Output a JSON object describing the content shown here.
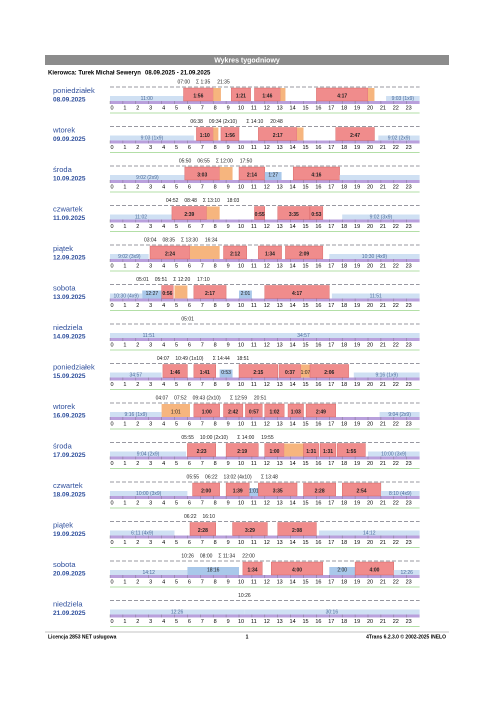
{
  "header": {
    "title": "Wykres tygodniowy",
    "driver": "Kierowca: Turek Michał Seweryn",
    "period": "08.09.2025 - 21.09.2025"
  },
  "hours": [
    0,
    1,
    2,
    3,
    4,
    5,
    6,
    7,
    8,
    9,
    10,
    11,
    12,
    13,
    14,
    15,
    16,
    17,
    18,
    19,
    20,
    21,
    22,
    23
  ],
  "days": [
    {
      "day": "poniedziałek",
      "date": "08.09.2025",
      "top": [
        "07:00",
        "Σ 1:35",
        "21:35"
      ],
      "seg": [
        {
          "s": 0,
          "e": 5.7,
          "k": "r",
          "label": "11:00"
        },
        {
          "s": 5.7,
          "e": 8,
          "k": "d",
          "label": "1:56"
        },
        {
          "s": 8,
          "e": 8.6,
          "k": "w"
        },
        {
          "s": 9.4,
          "e": 10.9,
          "k": "d",
          "label": "1:21"
        },
        {
          "s": 11.2,
          "e": 13.2,
          "k": "d",
          "label": "1:46"
        },
        {
          "s": 13.2,
          "e": 13.6,
          "k": "w"
        },
        {
          "s": 16,
          "e": 20,
          "k": "d",
          "label": "4:17"
        },
        {
          "s": 20,
          "e": 20.5,
          "k": "w"
        },
        {
          "s": 21.4,
          "e": 24,
          "k": "r",
          "label": "9:03 (1x9)"
        }
      ]
    },
    {
      "day": "wtorek",
      "date": "09.09.2025",
      "top": [
        "06:38",
        "09:34 (2x10)",
        "Σ 14:10",
        "20:48"
      ],
      "seg": [
        {
          "s": 0,
          "e": 6.5,
          "k": "r",
          "label": "9:03 (1x9)"
        },
        {
          "s": 6.7,
          "e": 8,
          "k": "d",
          "label": "1:10"
        },
        {
          "s": 8,
          "e": 8.4,
          "k": "w"
        },
        {
          "s": 8.6,
          "e": 10,
          "k": "d",
          "label": "1:56"
        },
        {
          "s": 11.5,
          "e": 14.5,
          "k": "d",
          "label": "2:17"
        },
        {
          "s": 14.5,
          "e": 15,
          "k": "w"
        },
        {
          "s": 17.5,
          "e": 20.5,
          "k": "d",
          "label": "2:47"
        },
        {
          "s": 20.8,
          "e": 24,
          "k": "r",
          "label": "9:02 (2x9)"
        }
      ]
    },
    {
      "day": "środa",
      "date": "10.09.2025",
      "top": [
        "05:50",
        "06:55",
        "Σ 12:00",
        "17:50"
      ],
      "seg": [
        {
          "s": 0,
          "e": 5.8,
          "k": "r",
          "label": "9:02 (2x9)"
        },
        {
          "s": 5.8,
          "e": 8.5,
          "k": "d",
          "label": "3:03"
        },
        {
          "s": 8.5,
          "e": 9.5,
          "k": "w"
        },
        {
          "s": 10,
          "e": 12,
          "k": "d",
          "label": "2:14"
        },
        {
          "s": 12,
          "e": 13.3,
          "k": "a",
          "label": "1:27"
        },
        {
          "s": 14.2,
          "e": 17.8,
          "k": "d",
          "label": "4:16"
        },
        {
          "s": 17.8,
          "e": 24,
          "k": "r"
        }
      ]
    },
    {
      "day": "czwartek",
      "date": "11.09.2025",
      "top": [
        "04:52",
        "08:48",
        "Σ 13:10",
        "18:03"
      ],
      "seg": [
        {
          "s": 0,
          "e": 4.8,
          "k": "r",
          "label": "11:02"
        },
        {
          "s": 4.8,
          "e": 7.5,
          "k": "d",
          "label": "2:39"
        },
        {
          "s": 7.5,
          "e": 8.5,
          "k": "w"
        },
        {
          "s": 11.2,
          "e": 12,
          "k": "d",
          "label": "0:55"
        },
        {
          "s": 13,
          "e": 15.5,
          "k": "d",
          "label": "3:35"
        },
        {
          "s": 15.5,
          "e": 16.5,
          "k": "d",
          "label": "0:53"
        },
        {
          "s": 18,
          "e": 24,
          "k": "r",
          "label": "9:02 (3x9)"
        }
      ]
    },
    {
      "day": "piątek",
      "date": "12.09.2025",
      "top": [
        "03:04",
        "08:35",
        "Σ 13:30",
        "16:34"
      ],
      "seg": [
        {
          "s": 0,
          "e": 3,
          "k": "r",
          "label": "9:02 (3x9)"
        },
        {
          "s": 3.1,
          "e": 6.2,
          "k": "d",
          "label": "2:24"
        },
        {
          "s": 6.2,
          "e": 8.5,
          "k": "w"
        },
        {
          "s": 8.8,
          "e": 10.6,
          "k": "d",
          "label": "2:12"
        },
        {
          "s": 11.5,
          "e": 13.3,
          "k": "d",
          "label": "1:34"
        },
        {
          "s": 13.6,
          "e": 16.5,
          "k": "d",
          "label": "2:09"
        },
        {
          "s": 17,
          "e": 24,
          "k": "r",
          "label": "10:30 (4x9)"
        }
      ]
    },
    {
      "day": "sobota",
      "date": "13.09.2025",
      "top": [
        "05:01",
        "05:51",
        "Σ 12:20",
        "17:10"
      ],
      "seg": [
        {
          "s": 0,
          "e": 2.5,
          "k": "r",
          "label": "10:30 (4x9)"
        },
        {
          "s": 2.5,
          "e": 4,
          "k": "a",
          "label": "12:27"
        },
        {
          "s": 4,
          "e": 4.9,
          "k": "d",
          "label": "0:56"
        },
        {
          "s": 5,
          "e": 6,
          "k": "w"
        },
        {
          "s": 6.5,
          "e": 9,
          "k": "d",
          "label": "2:17"
        },
        {
          "s": 10,
          "e": 11,
          "k": "a",
          "label": "2:01"
        },
        {
          "s": 12,
          "e": 17,
          "k": "d",
          "label": "4:17"
        },
        {
          "s": 17.2,
          "e": 24,
          "k": "r",
          "label": "11:51"
        }
      ]
    },
    {
      "day": "niedziela",
      "date": "14.09.2025",
      "top": [
        "05:01"
      ],
      "seg": [
        {
          "s": 0,
          "e": 6,
          "k": "r",
          "label": "11:51"
        },
        {
          "s": 6,
          "e": 24,
          "k": "r",
          "label": "34:57"
        }
      ]
    },
    {
      "day": "poniedziałek",
      "date": "15.09.2025",
      "top": [
        "04:07",
        "10:49 (1x10)",
        "Σ 14:44",
        "18:51"
      ],
      "seg": [
        {
          "s": 0,
          "e": 4,
          "k": "r",
          "label": "34:57"
        },
        {
          "s": 4.1,
          "e": 6,
          "k": "d",
          "label": "1:46"
        },
        {
          "s": 6.5,
          "e": 8.2,
          "k": "d",
          "label": "1:41"
        },
        {
          "s": 8.5,
          "e": 9.5,
          "k": "a",
          "label": "0:53"
        },
        {
          "s": 10,
          "e": 13,
          "k": "d",
          "label": "2:15"
        },
        {
          "s": 13.1,
          "e": 14.8,
          "k": "d",
          "label": "0:37"
        },
        {
          "s": 14.8,
          "e": 15.5,
          "k": "w",
          "label": "1:07"
        },
        {
          "s": 15.5,
          "e": 18.5,
          "k": "d",
          "label": "2:06"
        },
        {
          "s": 18.9,
          "e": 24,
          "k": "r",
          "label": "9:16 (1x9)"
        }
      ]
    },
    {
      "day": "wtorek",
      "date": "16.09.2025",
      "top": [
        "04:07",
        "07:52",
        "09:43 (2x10)",
        "Σ 12:59",
        "20:51"
      ],
      "seg": [
        {
          "s": 0,
          "e": 4,
          "k": "r",
          "label": "9:16 (1x9)"
        },
        {
          "s": 4,
          "e": 6.2,
          "k": "w",
          "label": "1:01"
        },
        {
          "s": 6.5,
          "e": 8.5,
          "k": "d",
          "label": "1:00"
        },
        {
          "s": 8.8,
          "e": 10.3,
          "k": "d",
          "label": "2:42"
        },
        {
          "s": 10.5,
          "e": 11.8,
          "k": "d",
          "label": "0:57"
        },
        {
          "s": 12,
          "e": 13.5,
          "k": "d",
          "label": "1:02"
        },
        {
          "s": 13.8,
          "e": 15,
          "k": "d",
          "label": "1:03"
        },
        {
          "s": 15.2,
          "e": 17.5,
          "k": "d",
          "label": "2:49"
        },
        {
          "s": 20.9,
          "e": 24,
          "k": "r",
          "label": "9:04 (2x9)"
        }
      ]
    },
    {
      "day": "środa",
      "date": "17.09.2025",
      "top": [
        "05:55",
        "10:00 (2x10)",
        "Σ 14:00",
        "19:55"
      ],
      "seg": [
        {
          "s": 0,
          "e": 5.9,
          "k": "r",
          "label": "9:04 (2x9)"
        },
        {
          "s": 6,
          "e": 8.2,
          "k": "d",
          "label": "2:23"
        },
        {
          "s": 9,
          "e": 11.5,
          "k": "d",
          "label": "2:19"
        },
        {
          "s": 12,
          "e": 13.5,
          "k": "d",
          "label": "1:00"
        },
        {
          "s": 13.5,
          "e": 15,
          "k": "w"
        },
        {
          "s": 15,
          "e": 16.2,
          "k": "d",
          "label": "1:31"
        },
        {
          "s": 16.3,
          "e": 17.5,
          "k": "d",
          "label": "1:31"
        },
        {
          "s": 17.6,
          "e": 19.8,
          "k": "d",
          "label": "1:55"
        },
        {
          "s": 20,
          "e": 24,
          "k": "r",
          "label": "10:00 (3x9)"
        }
      ]
    },
    {
      "day": "czwartek",
      "date": "18.09.2025",
      "top": [
        "05:55",
        "06:22",
        "13:02 (4x10)",
        "Σ 13:48"
      ],
      "seg": [
        {
          "s": 0,
          "e": 6,
          "k": "r",
          "label": "10:00 (3x9)"
        },
        {
          "s": 6.4,
          "e": 8.5,
          "k": "d",
          "label": "2:00"
        },
        {
          "s": 9,
          "e": 10.8,
          "k": "d",
          "label": "1:39"
        },
        {
          "s": 10.8,
          "e": 11.5,
          "k": "a",
          "label": "1:01"
        },
        {
          "s": 11.5,
          "e": 14.5,
          "k": "d",
          "label": "3:35"
        },
        {
          "s": 15,
          "e": 17.5,
          "k": "d",
          "label": "2:28"
        },
        {
          "s": 18,
          "e": 21,
          "k": "d",
          "label": "2:54"
        },
        {
          "s": 21,
          "e": 24,
          "k": "r",
          "label": "8:10 (4x9)"
        }
      ]
    },
    {
      "day": "piątek",
      "date": "19.09.2025",
      "top": [
        "06:22",
        "16:10"
      ],
      "seg": [
        {
          "s": 0,
          "e": 5,
          "k": "r",
          "label": "6:11 (4x9)"
        },
        {
          "s": 6.2,
          "e": 8.2,
          "k": "d",
          "label": "2:28"
        },
        {
          "s": 9.5,
          "e": 12.2,
          "k": "d",
          "label": "3:29"
        },
        {
          "s": 13,
          "e": 16,
          "k": "d",
          "label": "2:08"
        },
        {
          "s": 16.2,
          "e": 24,
          "k": "r",
          "label": "14:12"
        }
      ]
    },
    {
      "day": "sobota",
      "date": "20.09.2025",
      "top": [
        "10:26",
        "08:00",
        "Σ 11:34",
        "22:00"
      ],
      "seg": [
        {
          "s": 0,
          "e": 6,
          "k": "r",
          "label": "14:12"
        },
        {
          "s": 6,
          "e": 10,
          "k": "a",
          "label": "18:16"
        },
        {
          "s": 10.3,
          "e": 11.8,
          "k": "d",
          "label": "1:34"
        },
        {
          "s": 12.5,
          "e": 16.5,
          "k": "d",
          "label": "4:00"
        },
        {
          "s": 17,
          "e": 19,
          "k": "a",
          "label": "2:00"
        },
        {
          "s": 19,
          "e": 22,
          "k": "d",
          "label": "4:00"
        },
        {
          "s": 22,
          "e": 24,
          "k": "r",
          "label": "12:26"
        }
      ]
    },
    {
      "day": "niedziela",
      "date": "21.09.2025",
      "top": [
        "10:26"
      ],
      "seg": [
        {
          "s": 0,
          "e": 10.4,
          "k": "r",
          "label": "12:26"
        },
        {
          "s": 10.4,
          "e": 24,
          "k": "r",
          "label": "30:16"
        }
      ]
    }
  ],
  "footer": {
    "license": "Licencja 2853 NET usługowa",
    "page": "1",
    "software": "4Trans 6.2.3.0 © 2002-2025 INELO"
  }
}
